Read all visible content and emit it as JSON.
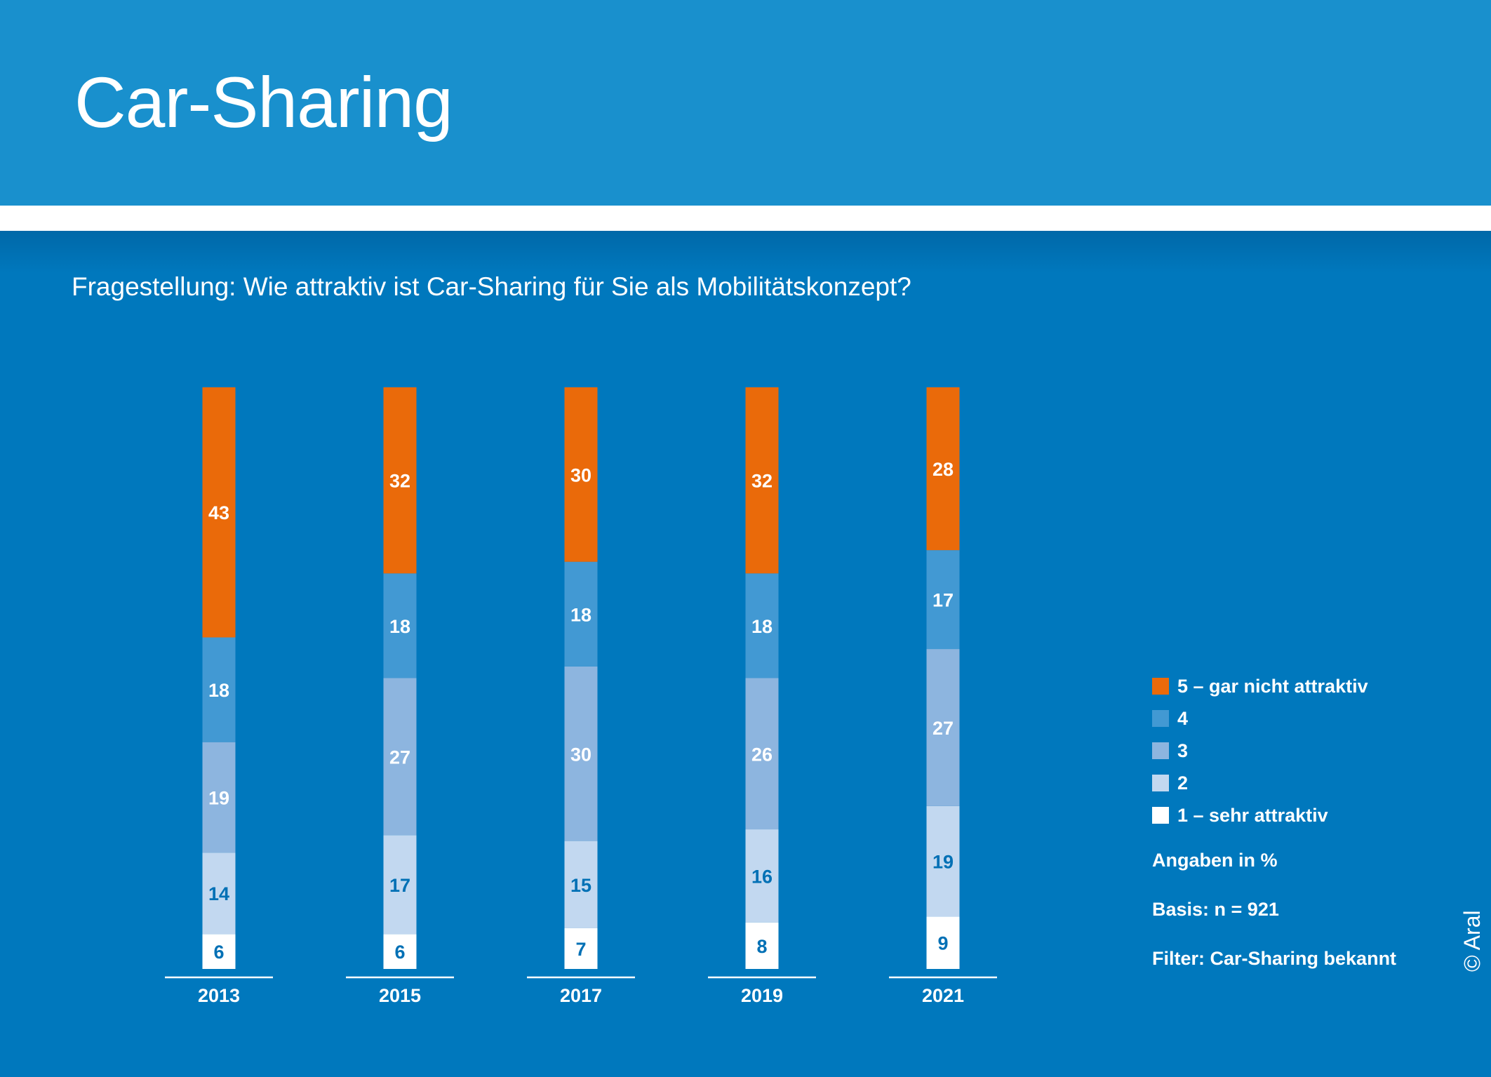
{
  "header": {
    "title": "Car-Sharing"
  },
  "question": "Fragestellung: Wie attraktiv ist Car-Sharing für Sie als Mobilitätskonzept?",
  "colors": {
    "header_bg": "#1990cd",
    "body_bg": "#0078bd",
    "s5": "#ea6a0a",
    "s4": "#4299d3",
    "s3": "#8db5df",
    "s2": "#c2d8f0",
    "s1": "#ffffff",
    "label_light": "#ffffff",
    "label_dark": "#0070b5"
  },
  "chart_data": {
    "type": "bar",
    "stacked": true,
    "unit": "%",
    "categories": [
      "2013",
      "2015",
      "2017",
      "2019",
      "2021"
    ],
    "series": [
      {
        "name": "1 – sehr attraktiv",
        "values": [
          6,
          6,
          7,
          8,
          9
        ]
      },
      {
        "name": "2",
        "values": [
          14,
          17,
          15,
          16,
          19
        ]
      },
      {
        "name": "3",
        "values": [
          19,
          27,
          30,
          26,
          27
        ]
      },
      {
        "name": "4",
        "values": [
          18,
          18,
          18,
          18,
          17
        ]
      },
      {
        "name": "5 – gar nicht attraktiv",
        "values": [
          43,
          32,
          30,
          32,
          28
        ]
      }
    ],
    "legend": [
      "5 – gar nicht attraktiv",
      "4",
      "3",
      "2",
      "1 – sehr attraktiv"
    ],
    "ylim": [
      0,
      100
    ]
  },
  "notes": {
    "unit": "Angaben in %",
    "basis": "Basis: n = 921",
    "filter": "Filter: Car-Sharing bekannt"
  },
  "copyright": "© Aral"
}
